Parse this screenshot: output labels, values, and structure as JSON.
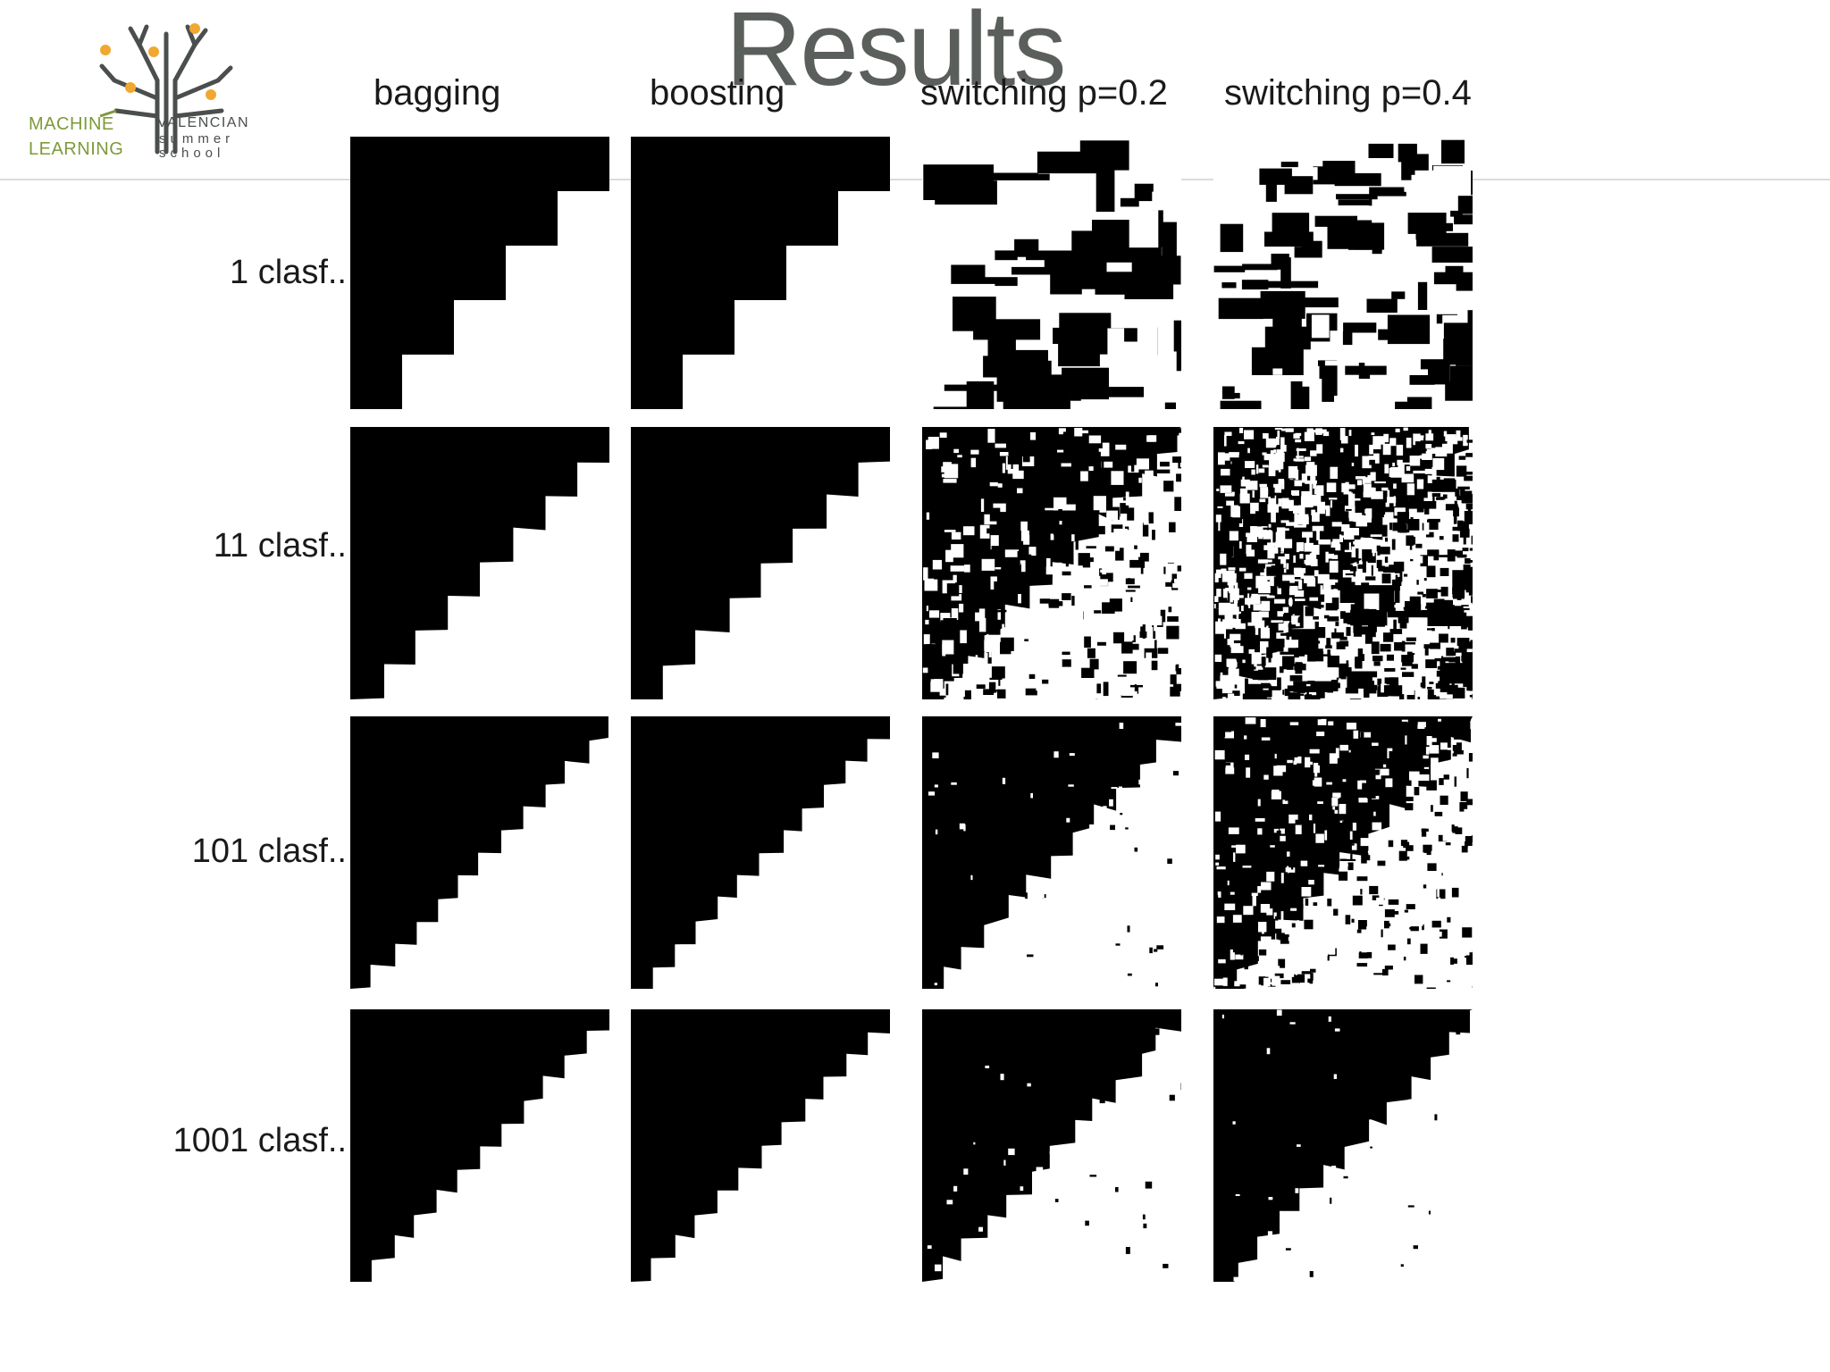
{
  "slide": {
    "title": "Results"
  },
  "logo": {
    "line1": "MACHINE",
    "line2": "LEARNING",
    "line3": "VALENCIAN",
    "line4": "summer",
    "line5": "school",
    "colors": {
      "green": "#7d9a3a",
      "orange": "#f0a830",
      "gray": "#4a4e4c"
    }
  },
  "grid": {
    "columns": [
      {
        "label": "bagging"
      },
      {
        "label": "boosting"
      },
      {
        "label": "switching p=0.2"
      },
      {
        "label": "switching p=0.4"
      }
    ],
    "rows": [
      {
        "label": "1 clasf.."
      },
      {
        "label": "11 clasf.."
      },
      {
        "label": "101 clasf.."
      },
      {
        "label": "1001 clasf.."
      }
    ]
  },
  "colors": {
    "title": "#5b5f5c",
    "text": "#1a1a1a",
    "panel_fill": "#000000",
    "panel_background": "#ffffff",
    "rule": "#dcdcdc"
  }
}
